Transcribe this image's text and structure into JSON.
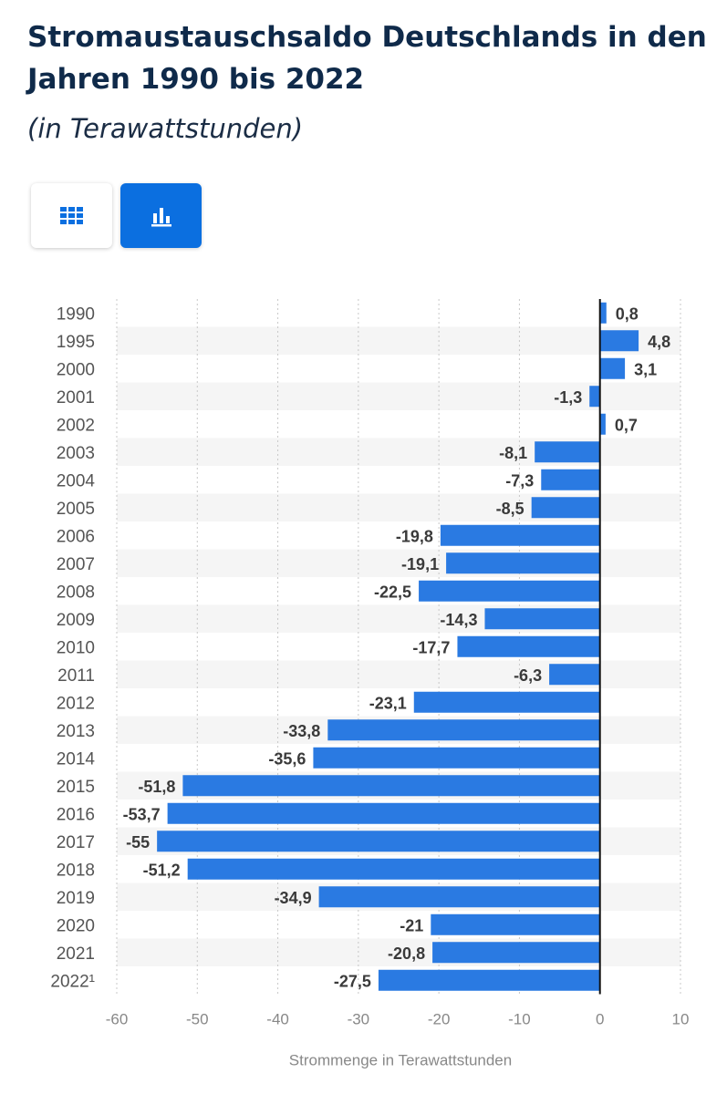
{
  "header": {
    "title": "Stromaustauschsaldo Deutschlands in den Jahren 1990 bis 2022",
    "subtitle": "(in Terawattstunden)"
  },
  "view_toggle": {
    "table_icon": "grid-icon",
    "chart_icon": "bar-chart-icon",
    "active": "chart"
  },
  "colors": {
    "bar": "#2a7ae2",
    "accent": "#0b6fe0",
    "title": "#0f2a4a",
    "band": "#f5f5f5"
  },
  "chart_data": {
    "type": "bar",
    "orientation": "horizontal",
    "title": "Stromaustauschsaldo Deutschlands in den Jahren 1990 bis 2022",
    "subtitle": "(in Terawattstunden)",
    "xlabel": "Strommenge in Terawattstunden",
    "ylabel": "",
    "xlim": [
      -60,
      10
    ],
    "xticks": [
      -60,
      -50,
      -40,
      -30,
      -20,
      -10,
      0,
      10
    ],
    "grid": true,
    "categories": [
      "1990",
      "1995",
      "2000",
      "2001",
      "2002",
      "2003",
      "2004",
      "2005",
      "2006",
      "2007",
      "2008",
      "2009",
      "2010",
      "2011",
      "2012",
      "2013",
      "2014",
      "2015",
      "2016",
      "2017",
      "2018",
      "2019",
      "2020",
      "2021",
      "2022¹"
    ],
    "values": [
      0.8,
      4.8,
      3.1,
      -1.3,
      0.7,
      -8.1,
      -7.3,
      -8.5,
      -19.8,
      -19.1,
      -22.5,
      -14.3,
      -17.7,
      -6.3,
      -23.1,
      -33.8,
      -35.6,
      -51.8,
      -53.7,
      -55,
      -51.2,
      -34.9,
      -21,
      -20.8,
      -27.5
    ],
    "value_labels": [
      "0,8",
      "4,8",
      "3,1",
      "-1,3",
      "0,7",
      "-8,1",
      "-7,3",
      "-8,5",
      "-19,8",
      "-19,1",
      "-22,5",
      "-14,3",
      "-17,7",
      "-6,3",
      "-23,1",
      "-33,8",
      "-35,6",
      "-51,8",
      "-53,7",
      "-55",
      "-51,2",
      "-34,9",
      "-21",
      "-20,8",
      "-27,5"
    ]
  }
}
